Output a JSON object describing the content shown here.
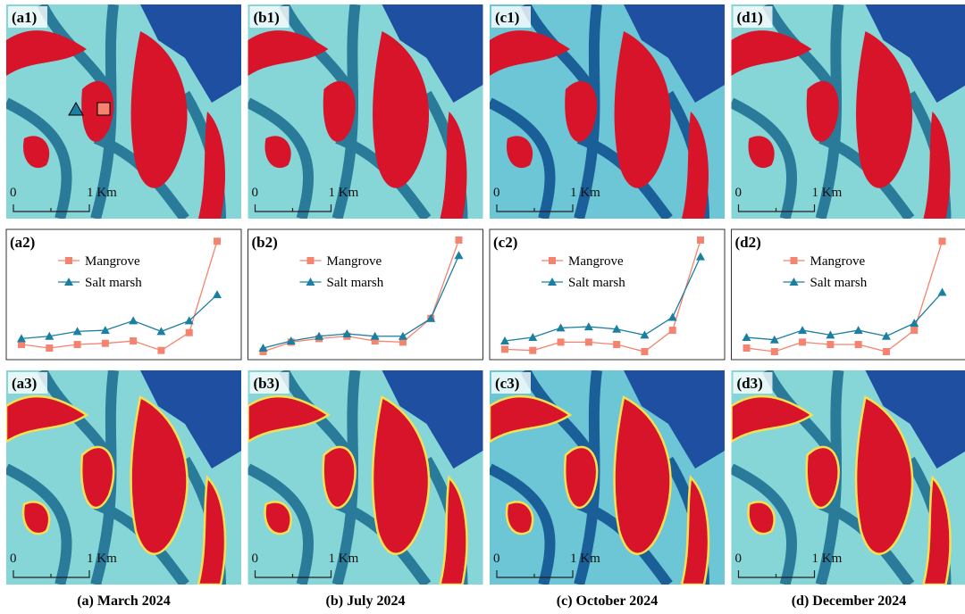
{
  "columns": [
    {
      "top_label": "(a1)",
      "bottom_label": "(a3)",
      "caption": "(a) March 2024"
    },
    {
      "top_label": "(b1)",
      "bottom_label": "(b3)",
      "caption": "(b) July 2024"
    },
    {
      "top_label": "(c1)",
      "bottom_label": "(c3)",
      "caption": "(c) October 2024"
    },
    {
      "top_label": "(d1)",
      "bottom_label": "(d3)",
      "caption": "(d) December 2024"
    }
  ],
  "scale_bar": {
    "start": "0",
    "end": "1 Km"
  },
  "chart_data": [
    {
      "type": "line",
      "title": "(a2)",
      "ylim": [
        0,
        100
      ],
      "series": [
        {
          "name": "Mangrove",
          "color": "#f4836f",
          "marker": "square",
          "values": [
            9,
            6,
            9,
            10,
            12,
            4,
            19,
            96
          ]
        },
        {
          "name": "Salt marsh",
          "color": "#1a7fa0",
          "marker": "triangle",
          "values": [
            14,
            16,
            20,
            21,
            29,
            20,
            29,
            51
          ]
        }
      ]
    },
    {
      "type": "line",
      "title": "(b2)",
      "ylim": [
        0,
        100
      ],
      "series": [
        {
          "name": "Mangrove",
          "color": "#f4836f",
          "marker": "square",
          "values": [
            3,
            11,
            14,
            16,
            12,
            11,
            31,
            97
          ]
        },
        {
          "name": "Salt marsh",
          "color": "#1a7fa0",
          "marker": "triangle",
          "values": [
            6,
            12,
            16,
            18,
            16,
            16,
            31,
            84
          ]
        }
      ]
    },
    {
      "type": "line",
      "title": "(c2)",
      "ylim": [
        0,
        100
      ],
      "series": [
        {
          "name": "Mangrove",
          "color": "#f4836f",
          "marker": "square",
          "values": [
            5,
            4,
            11,
            11,
            9,
            3,
            21,
            97
          ]
        },
        {
          "name": "Salt marsh",
          "color": "#1a7fa0",
          "marker": "triangle",
          "values": [
            12,
            15,
            23,
            24,
            22,
            17,
            32,
            83
          ]
        }
      ]
    },
    {
      "type": "line",
      "title": "(d2)",
      "ylim": [
        0,
        100
      ],
      "series": [
        {
          "name": "Mangrove",
          "color": "#f4836f",
          "marker": "square",
          "values": [
            6,
            3,
            11,
            9,
            9,
            3,
            21,
            96
          ]
        },
        {
          "name": "Salt marsh",
          "color": "#1a7fa0",
          "marker": "triangle",
          "values": [
            15,
            13,
            21,
            17,
            21,
            16,
            27,
            53
          ]
        }
      ]
    }
  ]
}
